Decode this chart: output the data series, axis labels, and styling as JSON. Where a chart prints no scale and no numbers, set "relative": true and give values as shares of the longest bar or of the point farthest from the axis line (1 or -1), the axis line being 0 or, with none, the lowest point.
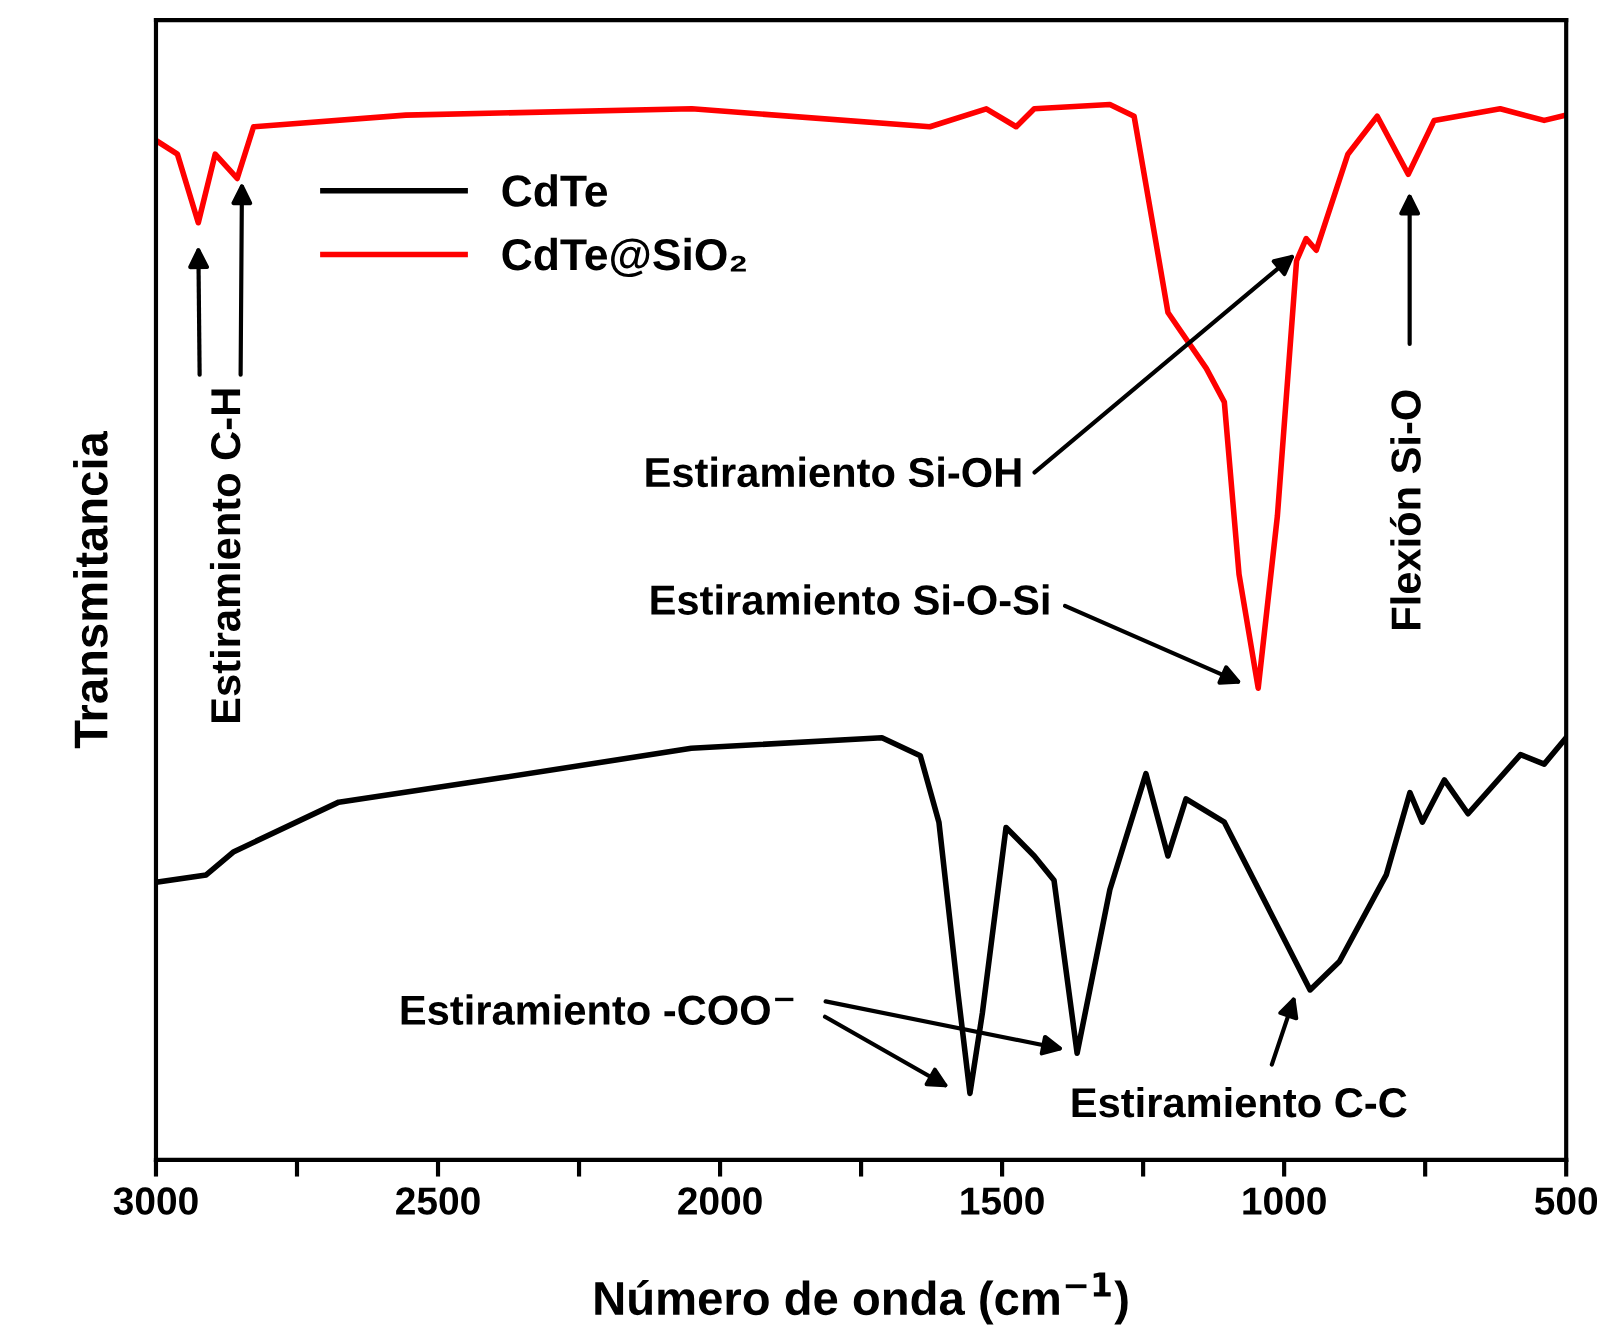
{
  "chart_data": {
    "type": "line",
    "relative": true,
    "xlabel": "Número de onda (cm$^{−1}$)",
    "ylabel": "Transmitancia",
    "xlim": [
      3000,
      500
    ],
    "xticks": [
      3000,
      {
        "value": 2750,
        "label": null
      },
      2500,
      {
        "value": 2250,
        "label": null
      },
      2000,
      {
        "value": 1750,
        "label": null
      },
      1500,
      {
        "value": 1250,
        "label": null
      },
      1000,
      {
        "value": 750,
        "label": null
      },
      500
    ],
    "legend": "top left",
    "grid": false,
    "marker": "none",
    "line_style": "solid",
    "series": [
      {
        "name": "CdTe",
        "color": "#000000",
        "x": [
          3000,
          2911,
          2862,
          2676,
          2388,
          2051,
          1713,
          1645,
          1612,
          1578,
          1557,
          1535,
          1493,
          1443,
          1408,
          1367,
          1309,
          1245,
          1206,
          1174,
          1106,
          954,
          902,
          819,
          777,
          755,
          716,
          674,
          581,
          539,
          500
        ],
        "values": [
          0.263,
          0.27,
          0.292,
          0.339,
          0.362,
          0.39,
          0.4,
          0.383,
          0.32,
          0.157,
          0.063,
          0.139,
          0.315,
          0.288,
          0.265,
          0.101,
          0.256,
          0.366,
          0.288,
          0.342,
          0.32,
          0.161,
          0.188,
          0.27,
          0.348,
          0.32,
          0.36,
          0.328,
          0.384,
          0.375,
          0.4
        ]
      },
      {
        "name": "CdTe@SiO₂",
        "color": "#ff0000",
        "x": [
          3000,
          2962,
          2925,
          2895,
          2856,
          2827,
          2557,
          2050,
          1628,
          1528,
          1475,
          1443,
          1309,
          1266,
          1231,
          1206,
          1138,
          1106,
          1080,
          1046,
          1012,
          978,
          961,
          943,
          887,
          835,
          780,
          734,
          617,
          539,
          500
        ],
        "values": [
          0.966,
          0.953,
          0.888,
          0.953,
          0.93,
          0.979,
          0.99,
          0.996,
          0.979,
          0.996,
          0.979,
          0.996,
          1.0,
          0.989,
          0.881,
          0.803,
          0.75,
          0.718,
          0.555,
          0.447,
          0.61,
          0.852,
          0.873,
          0.862,
          0.953,
          0.989,
          0.934,
          0.985,
          0.996,
          0.985,
          0.99
        ]
      }
    ],
    "annotations": [
      "Estiramiento C-H",
      "Estiramiento Si-OH",
      "Estiramiento Si-O-Si",
      "Flexión Si-O",
      "Estiramiento -COO$^{−}$",
      "Estiramiento C-C"
    ]
  }
}
